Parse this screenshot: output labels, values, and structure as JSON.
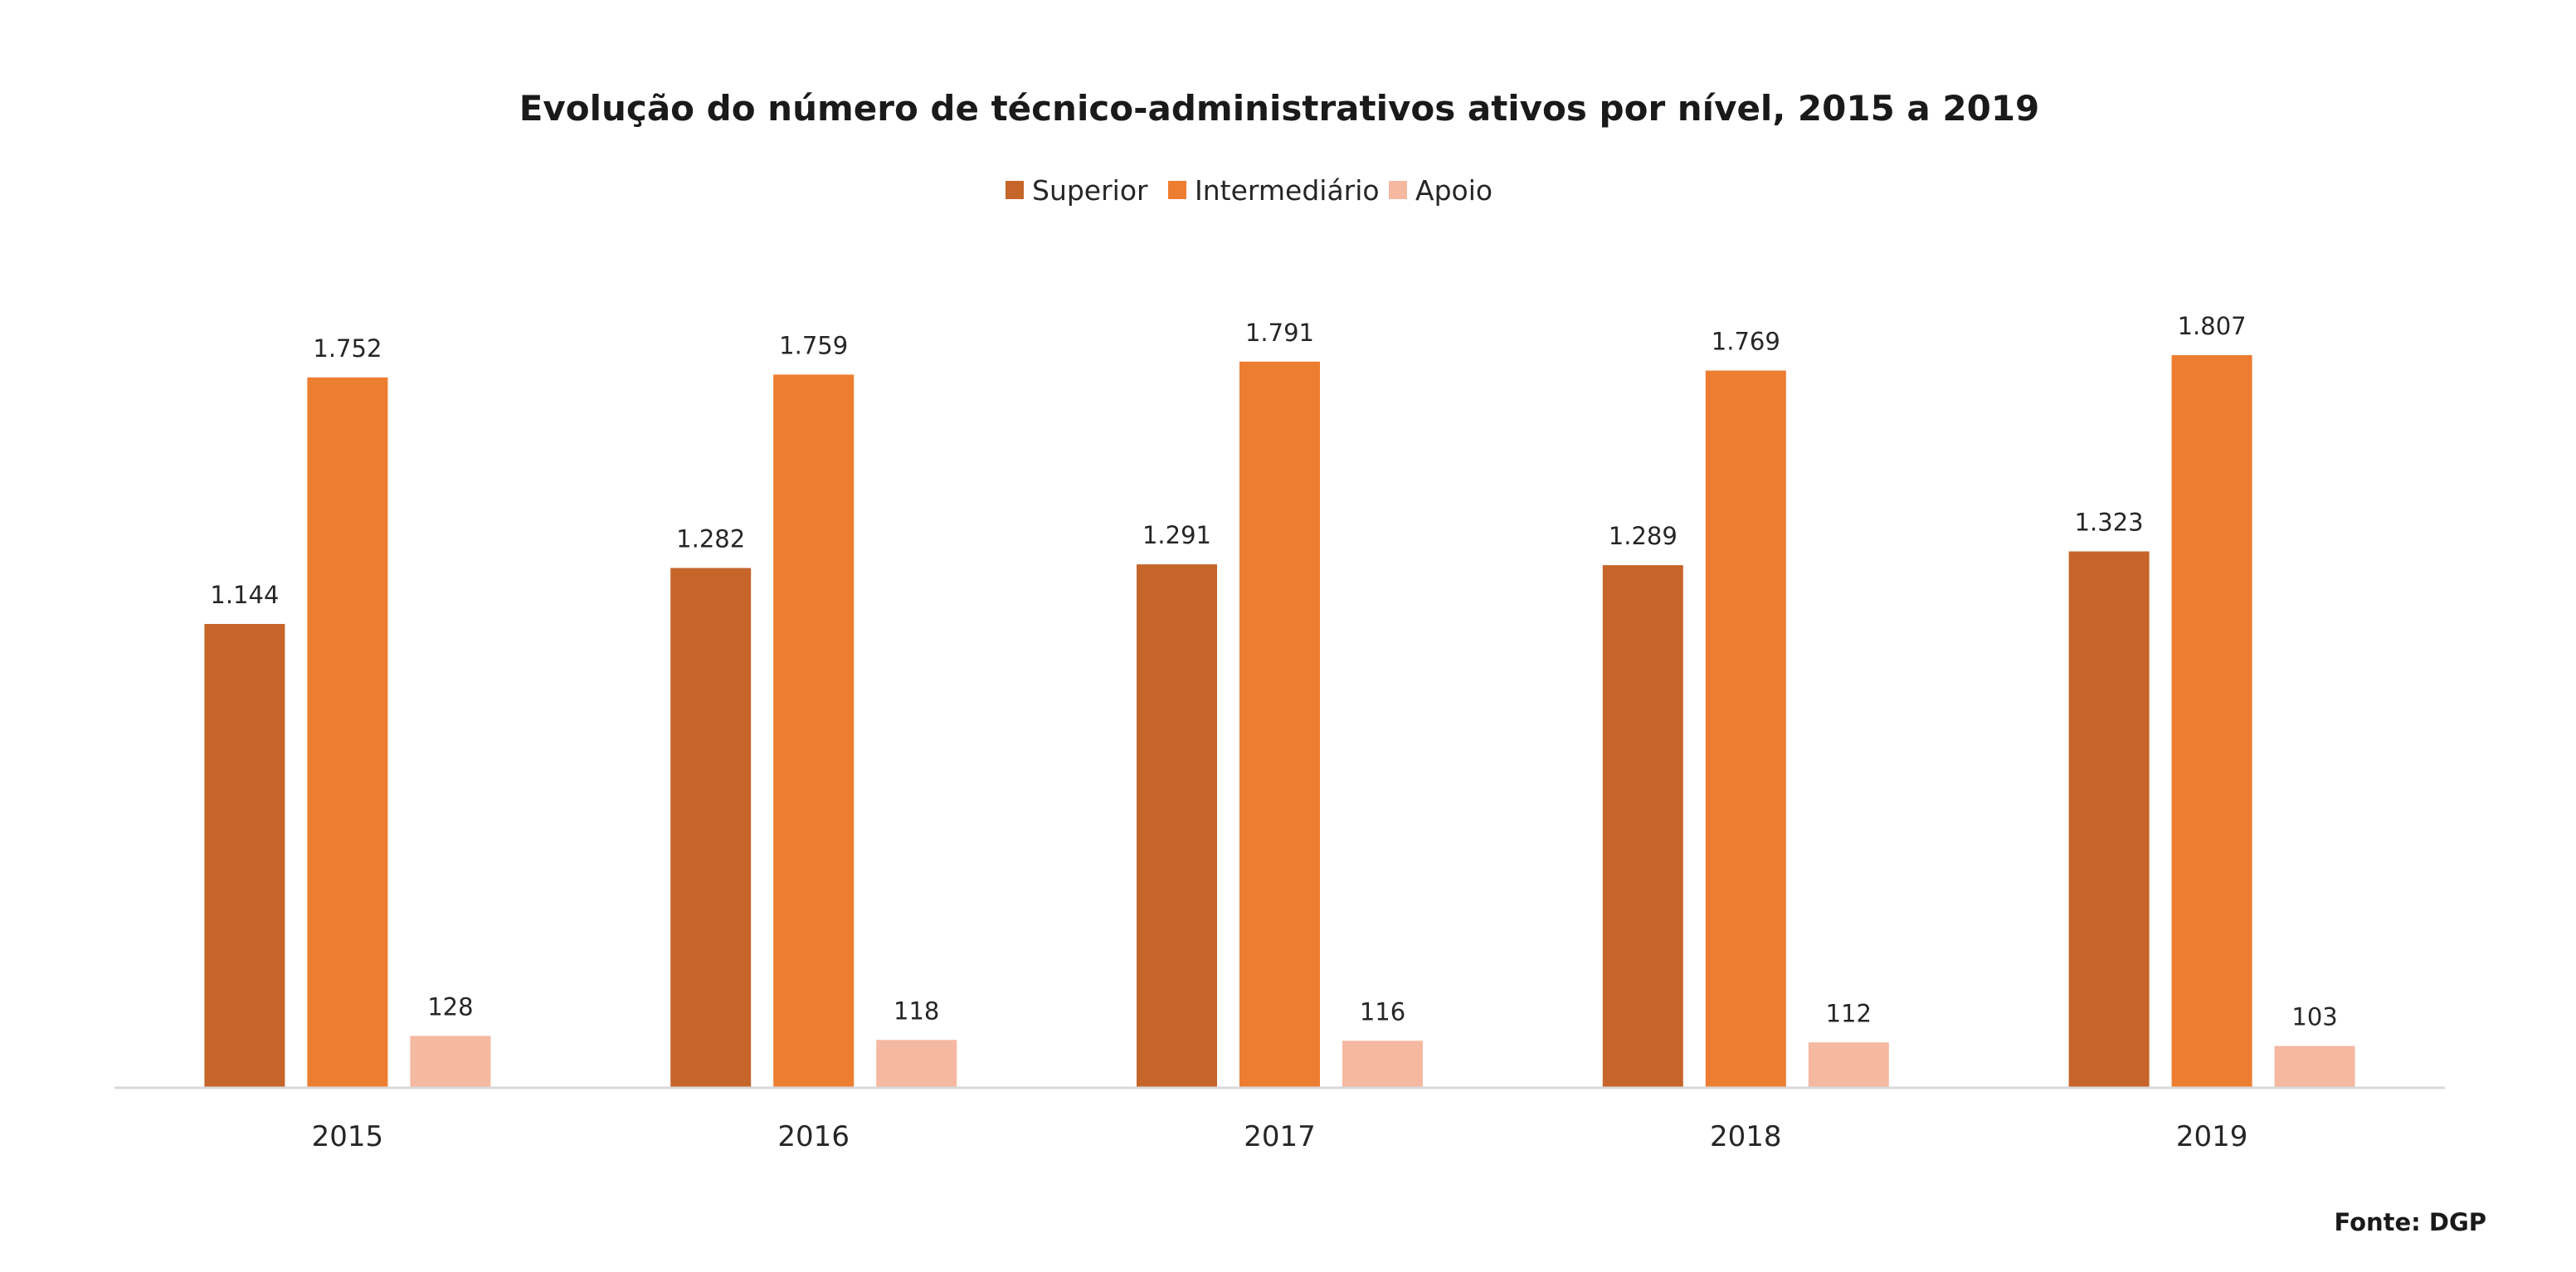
{
  "chart_data": {
    "type": "bar",
    "title": "Evolução do número de técnico-administrativos ativos por nível, 2015 a 2019",
    "categories": [
      "2015",
      "2016",
      "2017",
      "2018",
      "2019"
    ],
    "series": [
      {
        "name": "Superior",
        "color": "#c5652a",
        "values": [
          1144,
          1282,
          1291,
          1289,
          1323
        ],
        "labels": [
          "1.144",
          "1.282",
          "1.291",
          "1.289",
          "1.323"
        ]
      },
      {
        "name": "Intermediário",
        "color": "#ed7d31",
        "values": [
          1752,
          1759,
          1791,
          1769,
          1807
        ],
        "labels": [
          "1.752",
          "1.759",
          "1.791",
          "1.769",
          "1.807"
        ]
      },
      {
        "name": "Apoio",
        "color": "#f5b8a1",
        "values": [
          128,
          118,
          116,
          112,
          103
        ],
        "labels": [
          "128",
          "118",
          "116",
          "112",
          "103"
        ]
      }
    ],
    "ylim": [
      0,
      1807
    ],
    "grid": false,
    "legend_position": "top-center",
    "source": "Fonte: DGP",
    "axis_color": "#d9d9d9"
  }
}
